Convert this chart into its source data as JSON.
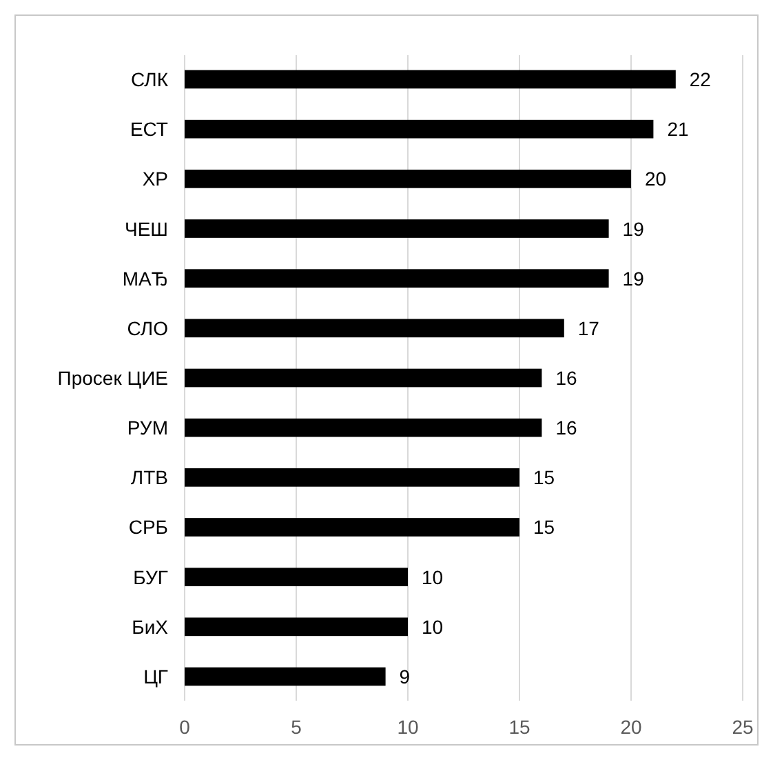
{
  "chart_data": {
    "type": "bar",
    "orientation": "horizontal",
    "categories": [
      "СЛК",
      "ЕСТ",
      "ХР",
      "ЧЕШ",
      "МАЂ",
      "СЛО",
      "Просек ЦИЕ",
      "РУМ",
      "ЛТВ",
      "СРБ",
      "БУГ",
      "БиХ",
      "ЦГ"
    ],
    "values": [
      22,
      21,
      20,
      19,
      19,
      17,
      16,
      16,
      15,
      15,
      10,
      10,
      9
    ],
    "color": "#000000",
    "xlim": [
      0,
      25
    ],
    "xticks": [
      0,
      5,
      10,
      15,
      20,
      25
    ],
    "grid": "x",
    "data_labels": true
  }
}
